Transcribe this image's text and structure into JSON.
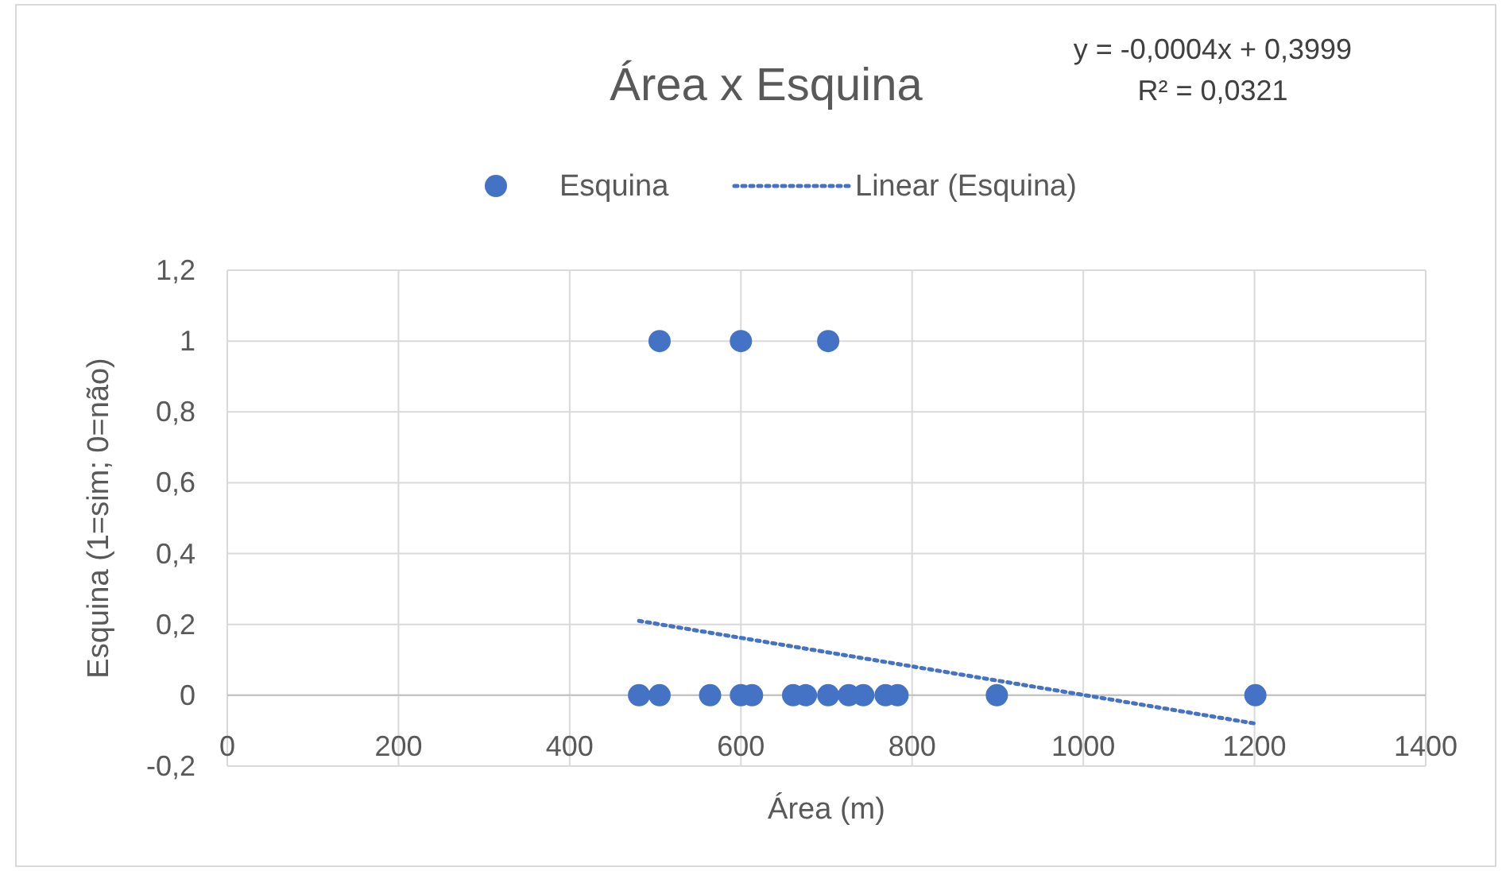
{
  "chart_data": {
    "type": "scatter",
    "title": "Área x Esquina",
    "xlabel": "Área (m)",
    "ylabel": "Esquina (1=sim; 0=não)",
    "series": [
      {
        "name": "Esquina",
        "type": "scatter",
        "color": "#4472c4",
        "marker": "circle",
        "x": [
          481,
          505,
          564,
          600,
          613,
          661,
          676,
          702,
          726,
          743,
          769,
          783,
          899,
          1201,
          505,
          600,
          702
        ],
        "values": [
          0,
          0,
          0,
          0,
          0,
          0,
          0,
          0,
          0,
          0,
          0,
          0,
          0,
          0,
          1,
          1,
          1
        ]
      },
      {
        "name": "Linear (Esquina)",
        "type": "line",
        "color": "#4472c4",
        "line_style": "dotted",
        "x": [
          481,
          1201
        ],
        "values": [
          0.21,
          -0.08
        ]
      }
    ],
    "annotations": [
      "y = -0,0004x + 0,3999",
      "R² = 0,0321"
    ],
    "xlim": [
      0,
      1400
    ],
    "xticks": [
      0,
      200,
      400,
      600,
      800,
      1000,
      1200,
      1400
    ],
    "ylim": [
      -0.2,
      1.2
    ],
    "yticks": [
      {
        "value": -0.2,
        "label": "-0,2"
      },
      0,
      {
        "value": 0.2,
        "label": "0,2"
      },
      {
        "value": 0.4,
        "label": "0,4"
      },
      {
        "value": 0.6,
        "label": "0,6"
      },
      {
        "value": 0.8,
        "label": "0,8"
      },
      1,
      {
        "value": 1.2,
        "label": "1,2"
      }
    ],
    "grid": true,
    "legend": "top"
  }
}
